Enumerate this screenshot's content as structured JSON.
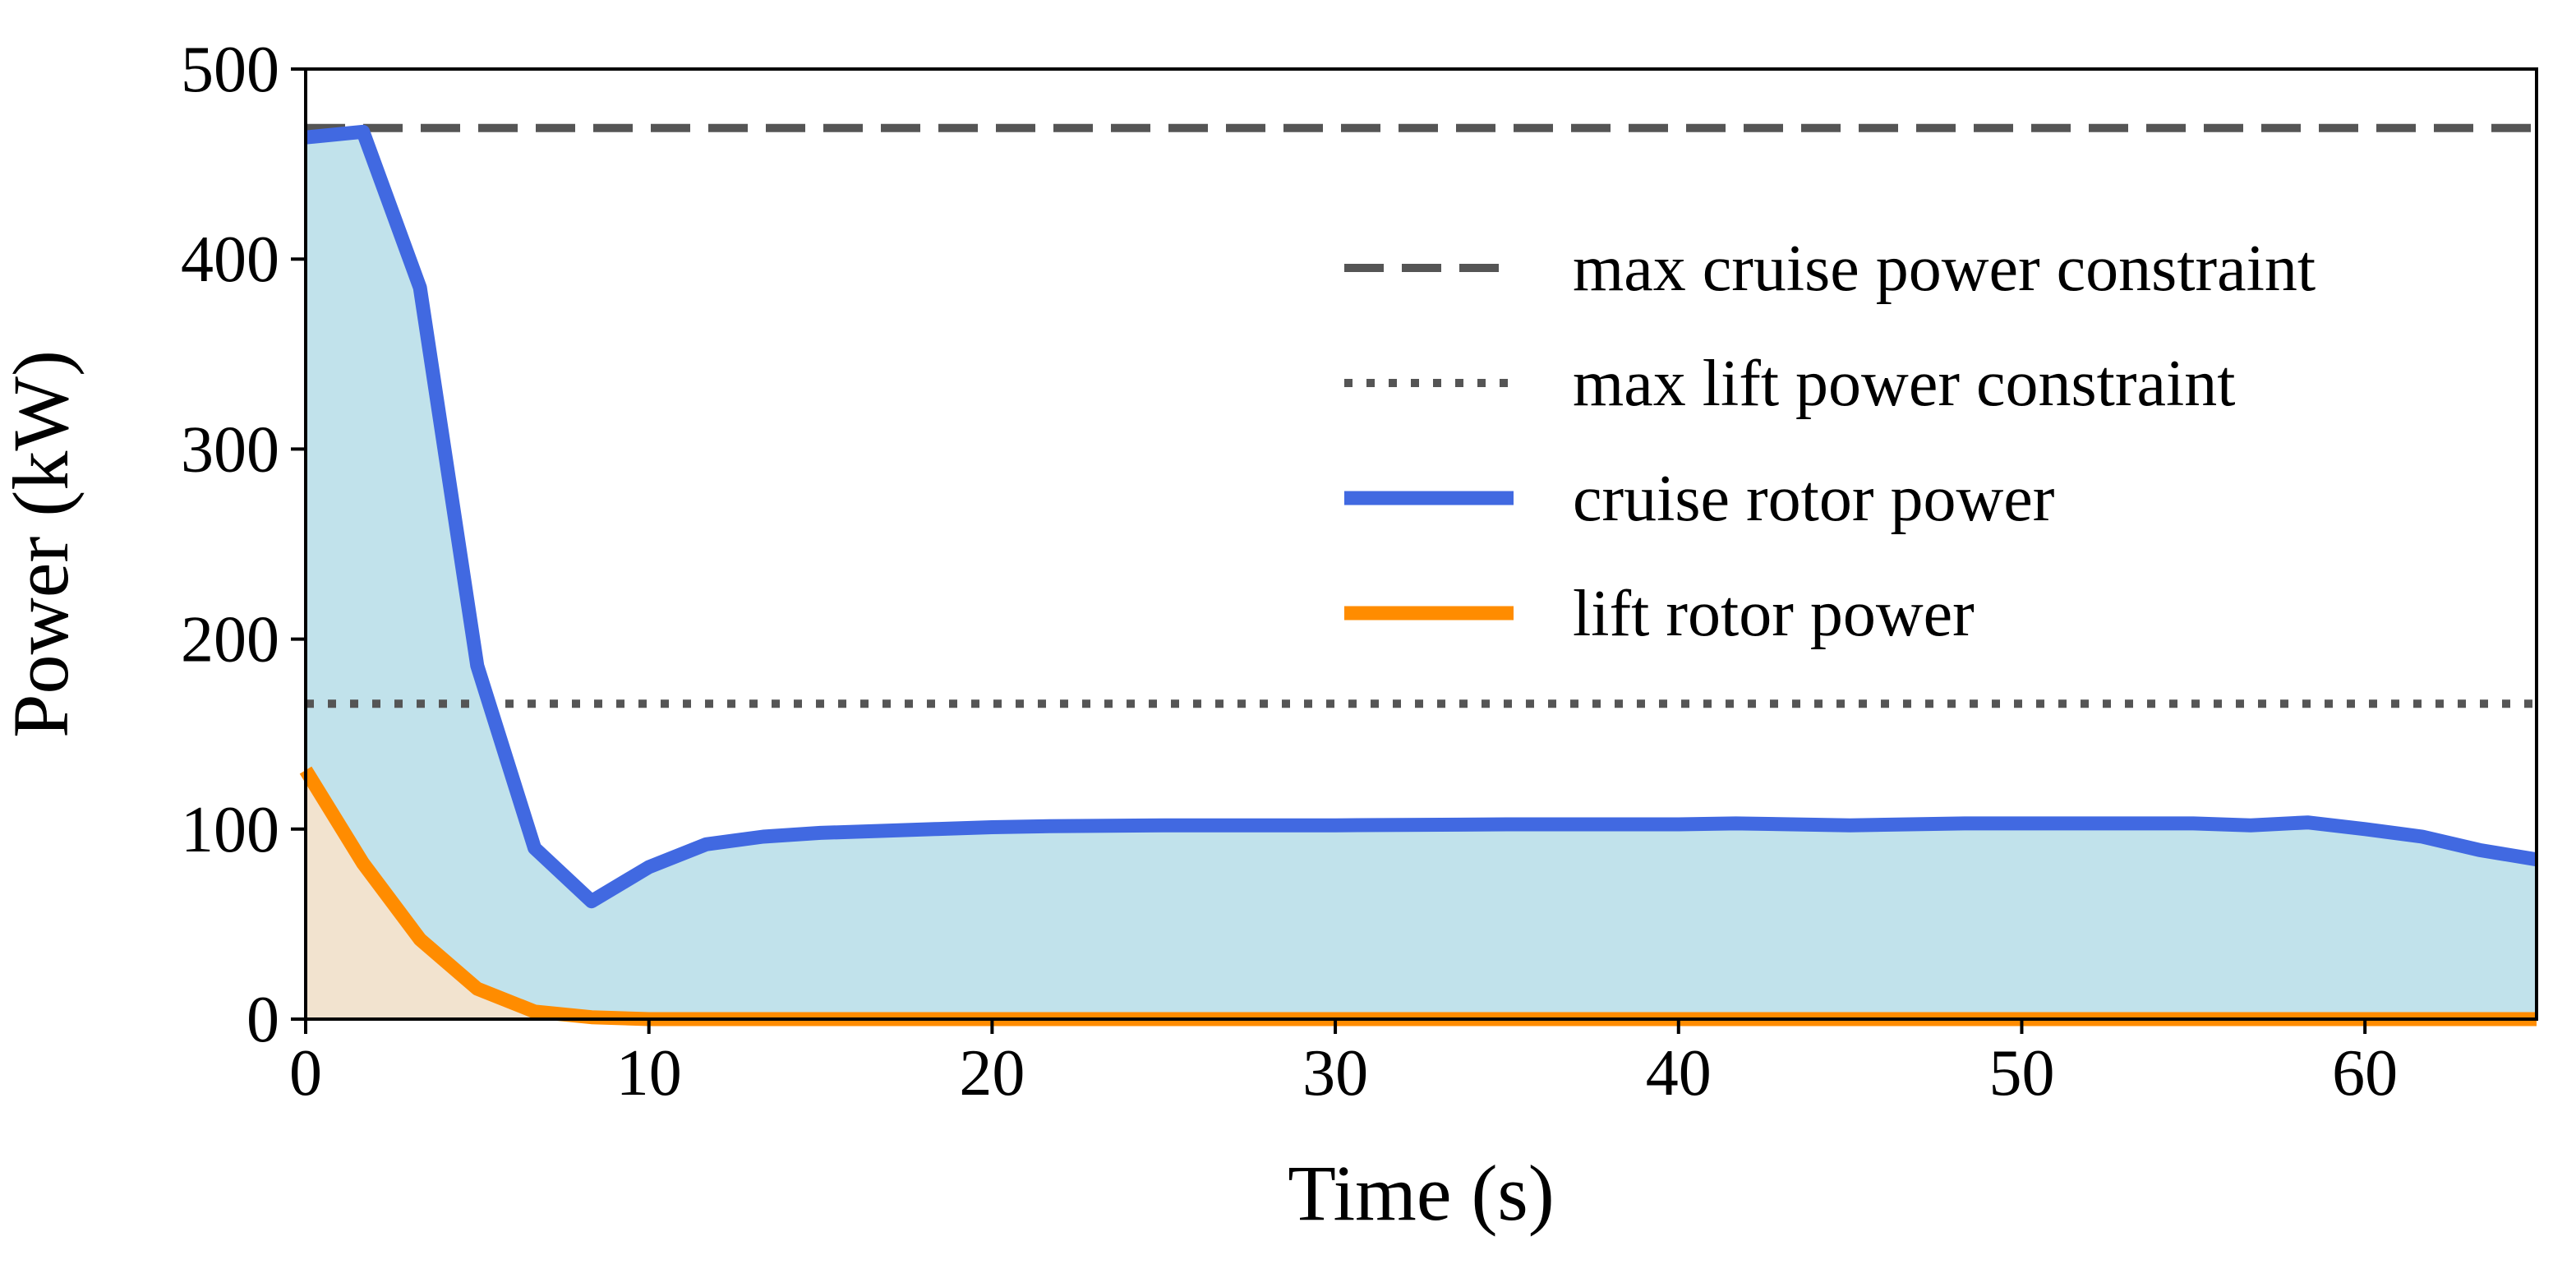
{
  "chart_data": {
    "type": "area",
    "xlabel": "Time (s)",
    "ylabel": "Power (kW)",
    "xlim": [
      0,
      65
    ],
    "ylim": [
      0,
      500
    ],
    "xticks": [
      "0",
      "10",
      "20",
      "30",
      "40",
      "50",
      "60"
    ],
    "yticks": [
      "0",
      "100",
      "200",
      "300",
      "400",
      "500"
    ],
    "grid": false,
    "legend_position": "upper-right",
    "series": [
      {
        "name": "cruise rotor power",
        "style": "solid",
        "color": "#4169e1",
        "fill_color": "#c1e2eb",
        "x": [
          0,
          1.67,
          3.33,
          5.0,
          6.67,
          8.33,
          10.0,
          11.67,
          13.33,
          15.0,
          16.67,
          18.33,
          20.0,
          21.67,
          25.0,
          30.0,
          35.0,
          40.0,
          41.67,
          45.0,
          48.33,
          50.0,
          53.33,
          55.0,
          56.67,
          58.33,
          60.0,
          61.67,
          63.33,
          65.0
        ],
        "y": [
          464,
          467,
          385,
          186,
          90,
          62,
          80,
          92,
          96,
          98,
          99,
          100,
          101,
          101.5,
          102,
          102,
          102.5,
          102.5,
          103,
          102,
          103,
          103,
          103,
          103,
          102,
          103.5,
          100,
          96,
          89,
          84
        ]
      },
      {
        "name": "lift rotor power",
        "style": "solid",
        "color": "#ff8c00",
        "fill_color": "#f2e3cf",
        "x": [
          0,
          1.67,
          3.33,
          5.0,
          6.67,
          8.33,
          10.0,
          20.0,
          30.0,
          40.0,
          50.0,
          60.0,
          65.0
        ],
        "y": [
          131,
          82,
          42,
          16,
          4,
          1,
          0,
          0,
          0,
          0,
          0,
          0,
          0
        ]
      },
      {
        "name": "max cruise power constraint",
        "style": "dashed",
        "color": "#555555",
        "x": [
          0,
          65
        ],
        "y": [
          469,
          469
        ]
      },
      {
        "name": "max lift power constraint",
        "style": "dotted",
        "color": "#555555",
        "x": [
          0,
          65
        ],
        "y": [
          166,
          166
        ]
      }
    ],
    "legend_order": [
      "max cruise power constraint",
      "max lift power constraint",
      "cruise rotor power",
      "lift rotor power"
    ]
  }
}
